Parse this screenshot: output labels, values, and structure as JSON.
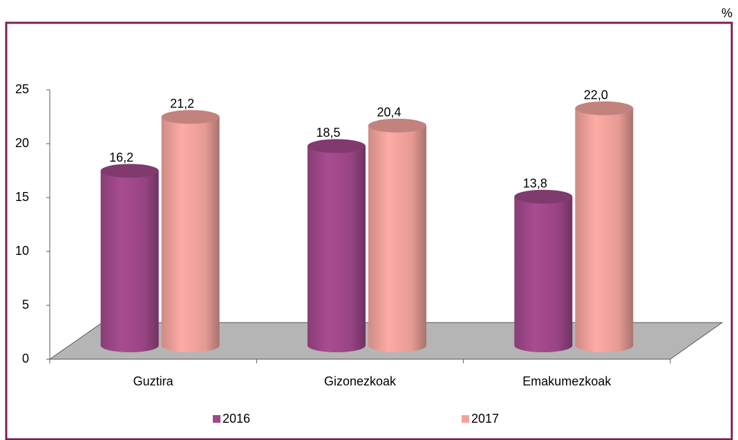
{
  "chart_data": {
    "type": "bar3d",
    "unit": "%",
    "categories": [
      "Guztira",
      "Gizonezkoak",
      "Emakumezkoak"
    ],
    "series": [
      {
        "name": "2016",
        "color": "#a0488a",
        "values": [
          16.2,
          18.5,
          13.8
        ],
        "value_labels": [
          "16,2",
          "18,5",
          "13,8"
        ]
      },
      {
        "name": "2017",
        "color": "#f2a39c",
        "values": [
          21.2,
          20.4,
          22.0
        ],
        "value_labels": [
          "21,2",
          "20,4",
          "22,0"
        ]
      }
    ],
    "ylim": [
      0,
      25
    ],
    "yticks": [
      0,
      5,
      10,
      15,
      20,
      25
    ],
    "legend": "bottom"
  }
}
